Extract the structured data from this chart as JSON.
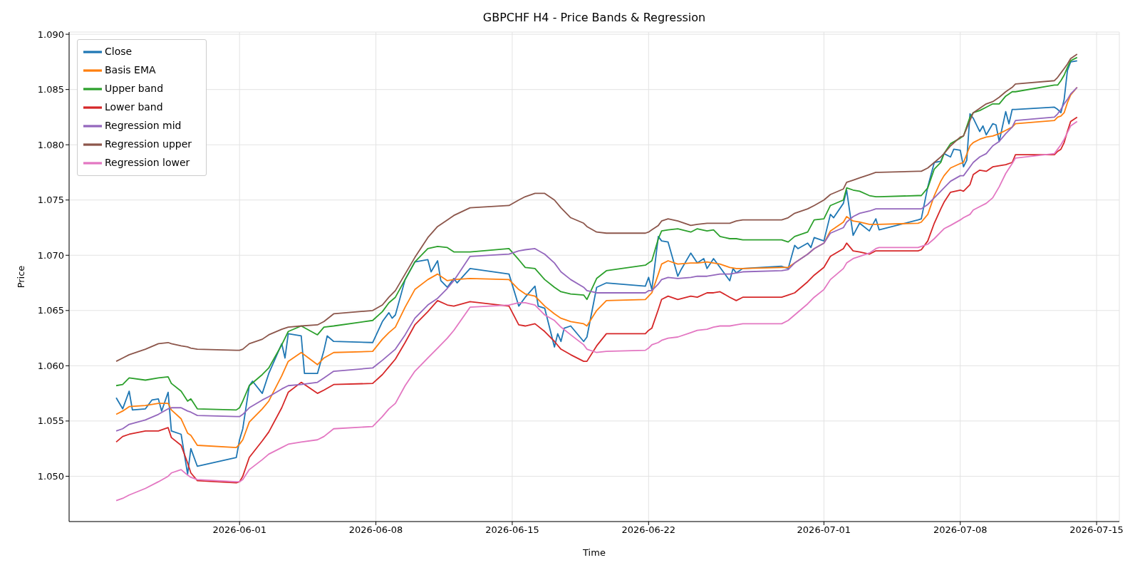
{
  "chart_data": {
    "type": "line",
    "title": "GBPCHF H4 - Price Bands & Regression",
    "xlabel": "Time",
    "ylabel": "Price",
    "xlim": [
      "2026-05-23T06:00",
      "2026-07-16T04:00"
    ],
    "xticks": [
      "2026-06-01",
      "2026-06-08",
      "2026-06-15",
      "2026-06-22",
      "2026-07-01",
      "2026-07-08",
      "2026-07-15"
    ],
    "ylim": [
      1.0459,
      1.0902
    ],
    "yticks": [
      {
        "value": 1.05,
        "label": "1.050"
      },
      {
        "value": 1.055,
        "label": "1.055"
      },
      {
        "value": 1.06,
        "label": "1.060"
      },
      {
        "value": 1.065,
        "label": "1.065"
      },
      {
        "value": 1.07,
        "label": "1.070"
      },
      {
        "value": 1.075,
        "label": "1.075"
      },
      {
        "value": 1.08,
        "label": "1.080"
      },
      {
        "value": 1.085,
        "label": "1.085"
      },
      {
        "value": 1.09,
        "label": "1.090"
      }
    ],
    "grid": true,
    "legend": "top left",
    "line_style": "solid",
    "x": [
      "2026-05-25T16:00",
      "2026-05-26T00:00",
      "2026-05-26T08:00",
      "2026-05-27T04:00",
      "2026-05-27T20:00",
      "2026-05-28T08:00",
      "2026-05-28T12:00",
      "2026-05-29T00:00",
      "2026-05-29T08:00",
      "2026-05-29T12:00",
      "2026-05-29T20:00",
      "2026-05-31T20:00",
      "2026-06-01T00:00",
      "2026-06-01T04:00",
      "2026-06-01T12:00",
      "2026-06-02T04:00",
      "2026-06-02T12:00",
      "2026-06-03T04:00",
      "2026-06-03T12:00",
      "2026-06-04T04:00",
      "2026-06-05T00:00",
      "2026-06-05T08:00",
      "2026-06-05T20:00",
      "2026-06-07T20:00",
      "2026-06-08T08:00",
      "2026-06-08T16:00",
      "2026-06-09T00:00",
      "2026-06-09T12:00",
      "2026-06-10T00:00",
      "2026-06-10T16:00",
      "2026-06-11T04:00",
      "2026-06-11T16:00",
      "2026-06-12T00:00",
      "2026-06-12T20:00",
      "2026-06-14T20:00",
      "2026-06-15T08:00",
      "2026-06-15T16:00",
      "2026-06-16T04:00",
      "2026-06-16T16:00",
      "2026-06-17T04:00",
      "2026-06-17T12:00",
      "2026-06-18T00:00",
      "2026-06-18T16:00",
      "2026-06-18T20:00",
      "2026-06-19T08:00",
      "2026-06-19T20:00",
      "2026-06-21T20:00",
      "2026-06-22T00:00",
      "2026-06-22T04:00",
      "2026-06-22T12:00",
      "2026-06-22T16:00",
      "2026-06-23T00:00",
      "2026-06-23T12:00",
      "2026-06-24T04:00",
      "2026-06-24T12:00",
      "2026-06-25T00:00",
      "2026-06-25T08:00",
      "2026-06-25T16:00",
      "2026-06-26T04:00",
      "2026-06-26T12:00",
      "2026-06-26T20:00",
      "2026-06-28T20:00",
      "2026-06-29T04:00",
      "2026-06-29T12:00",
      "2026-06-30T04:00",
      "2026-06-30T12:00",
      "2026-07-01T00:00",
      "2026-07-01T08:00",
      "2026-07-02T00:00",
      "2026-07-02T04:00",
      "2026-07-02T12:00",
      "2026-07-02T20:00",
      "2026-07-03T08:00",
      "2026-07-03T16:00",
      "2026-07-03T20:00",
      "2026-07-05T20:00",
      "2026-07-06T00:00",
      "2026-07-06T08:00",
      "2026-07-06T16:00",
      "2026-07-07T00:00",
      "2026-07-07T04:00",
      "2026-07-07T12:00",
      "2026-07-08T00:00",
      "2026-07-08T04:00",
      "2026-07-08T12:00",
      "2026-07-08T16:00",
      "2026-07-09T00:00",
      "2026-07-09T08:00",
      "2026-07-09T16:00",
      "2026-07-10T00:00",
      "2026-07-10T08:00",
      "2026-07-10T16:00",
      "2026-07-10T20:00",
      "2026-07-12T20:00",
      "2026-07-13T00:00",
      "2026-07-13T04:00",
      "2026-07-13T08:00",
      "2026-07-13T12:00",
      "2026-07-13T16:00",
      "2026-07-14T00:00"
    ],
    "series": [
      {
        "name": "Close",
        "color": "#1f77b4",
        "x": [
          "2026-05-25T16:00",
          "2026-05-26T00:00",
          "2026-05-26T08:00",
          "2026-05-26T12:00",
          "2026-05-27T04:00",
          "2026-05-27T12:00",
          "2026-05-27T20:00",
          "2026-05-28T00:00",
          "2026-05-28T08:00",
          "2026-05-28T12:00",
          "2026-05-29T00:00",
          "2026-05-29T08:00",
          "2026-05-29T12:00",
          "2026-05-29T20:00",
          "2026-05-31T20:00",
          "2026-06-01T00:00",
          "2026-06-01T04:00",
          "2026-06-01T12:00",
          "2026-06-01T16:00",
          "2026-06-02T04:00",
          "2026-06-02T12:00",
          "2026-06-03T04:00",
          "2026-06-03T08:00",
          "2026-06-03T12:00",
          "2026-06-04T04:00",
          "2026-06-04T08:00",
          "2026-06-05T00:00",
          "2026-06-05T08:00",
          "2026-06-05T12:00",
          "2026-06-05T20:00",
          "2026-06-07T20:00",
          "2026-06-08T08:00",
          "2026-06-08T16:00",
          "2026-06-08T20:00",
          "2026-06-09T00:00",
          "2026-06-09T12:00",
          "2026-06-10T00:00",
          "2026-06-10T16:00",
          "2026-06-10T20:00",
          "2026-06-11T04:00",
          "2026-06-11T08:00",
          "2026-06-11T16:00",
          "2026-06-12T00:00",
          "2026-06-12T04:00",
          "2026-06-12T20:00",
          "2026-06-14T20:00",
          "2026-06-15T08:00",
          "2026-06-15T16:00",
          "2026-06-16T04:00",
          "2026-06-16T08:00",
          "2026-06-16T16:00",
          "2026-06-17T04:00",
          "2026-06-17T08:00",
          "2026-06-17T12:00",
          "2026-06-17T16:00",
          "2026-06-18T00:00",
          "2026-06-18T16:00",
          "2026-06-18T20:00",
          "2026-06-19T08:00",
          "2026-06-19T20:00",
          "2026-06-21T20:00",
          "2026-06-22T00:00",
          "2026-06-22T04:00",
          "2026-06-22T12:00",
          "2026-06-22T16:00",
          "2026-06-23T00:00",
          "2026-06-23T12:00",
          "2026-06-23T16:00",
          "2026-06-24T04:00",
          "2026-06-24T12:00",
          "2026-06-24T20:00",
          "2026-06-25T00:00",
          "2026-06-25T08:00",
          "2026-06-25T16:00",
          "2026-06-26T04:00",
          "2026-06-26T08:00",
          "2026-06-26T12:00",
          "2026-06-26T20:00",
          "2026-06-28T20:00",
          "2026-06-29T04:00",
          "2026-06-29T12:00",
          "2026-06-29T16:00",
          "2026-06-30T04:00",
          "2026-06-30T08:00",
          "2026-06-30T12:00",
          "2026-07-01T00:00",
          "2026-07-01T08:00",
          "2026-07-01T12:00",
          "2026-07-02T00:00",
          "2026-07-02T04:00",
          "2026-07-02T12:00",
          "2026-07-02T20:00",
          "2026-07-03T08:00",
          "2026-07-03T16:00",
          "2026-07-03T20:00",
          "2026-07-05T20:00",
          "2026-07-06T00:00",
          "2026-07-06T08:00",
          "2026-07-06T16:00",
          "2026-07-07T00:00",
          "2026-07-07T04:00",
          "2026-07-07T12:00",
          "2026-07-07T16:00",
          "2026-07-08T00:00",
          "2026-07-08T04:00",
          "2026-07-08T08:00",
          "2026-07-08T12:00",
          "2026-07-08T16:00",
          "2026-07-09T00:00",
          "2026-07-09T04:00",
          "2026-07-09T08:00",
          "2026-07-09T16:00",
          "2026-07-09T20:00",
          "2026-07-10T00:00",
          "2026-07-10T08:00",
          "2026-07-10T12:00",
          "2026-07-10T16:00",
          "2026-07-10T20:00",
          "2026-07-12T20:00",
          "2026-07-13T00:00",
          "2026-07-13T04:00",
          "2026-07-13T08:00",
          "2026-07-13T12:00",
          "2026-07-13T16:00",
          "2026-07-14T00:00"
        ],
        "values": [
          1.0571,
          1.0561,
          1.0577,
          1.056,
          1.0561,
          1.0569,
          1.057,
          1.0559,
          1.0576,
          1.0541,
          1.0538,
          1.0502,
          1.0525,
          1.0509,
          1.0517,
          1.0533,
          1.0543,
          1.0582,
          1.0586,
          1.0575,
          1.0593,
          1.062,
          1.0607,
          1.0629,
          1.0627,
          1.0593,
          1.0593,
          1.0614,
          1.0627,
          1.0622,
          1.0621,
          1.064,
          1.0648,
          1.0643,
          1.0646,
          1.0678,
          1.0694,
          1.0696,
          1.0685,
          1.0695,
          1.0677,
          1.0671,
          1.0679,
          1.0675,
          1.0688,
          1.0683,
          1.0654,
          1.0662,
          1.0672,
          1.0654,
          1.0652,
          1.0617,
          1.0629,
          1.0622,
          1.0634,
          1.0636,
          1.0622,
          1.0626,
          1.0671,
          1.0675,
          1.0672,
          1.068,
          1.0669,
          1.0717,
          1.0713,
          1.0712,
          1.0681,
          1.0687,
          1.0702,
          1.0693,
          1.0697,
          1.0688,
          1.0697,
          1.0689,
          1.0677,
          1.0688,
          1.0684,
          1.0688,
          1.069,
          1.0688,
          1.0709,
          1.0706,
          1.0711,
          1.0707,
          1.0716,
          1.0713,
          1.0737,
          1.0734,
          1.0747,
          1.0759,
          1.0718,
          1.0729,
          1.0722,
          1.0733,
          1.0723,
          1.0732,
          1.0733,
          1.0762,
          1.0784,
          1.0785,
          1.0792,
          1.0789,
          1.0796,
          1.0795,
          1.078,
          1.0786,
          1.0828,
          1.0824,
          1.0812,
          1.0817,
          1.0809,
          1.0819,
          1.0818,
          1.0803,
          1.083,
          1.0819,
          1.0832,
          1.0832,
          1.0834,
          1.0832,
          1.0829,
          1.0841,
          1.0867,
          1.0875,
          1.0876
        ]
      },
      {
        "name": "Basis EMA",
        "color": "#ff7f0e",
        "values": [
          1.0556,
          1.0559,
          1.0563,
          1.0564,
          1.0566,
          1.0566,
          1.056,
          1.0552,
          1.0539,
          1.0537,
          1.0528,
          1.0526,
          1.0529,
          1.0533,
          1.0549,
          1.0561,
          1.0568,
          1.0591,
          1.0604,
          1.0612,
          1.0601,
          1.0607,
          1.0612,
          1.0613,
          1.0624,
          1.063,
          1.0635,
          1.0653,
          1.0669,
          1.0678,
          1.0683,
          1.0677,
          1.0678,
          1.0679,
          1.0678,
          1.0669,
          1.0665,
          1.0663,
          1.0654,
          1.0647,
          1.0643,
          1.064,
          1.0638,
          1.0636,
          1.065,
          1.0659,
          1.066,
          1.0663,
          1.0666,
          1.0683,
          1.0692,
          1.0695,
          1.0692,
          1.0693,
          1.0693,
          1.0694,
          1.0693,
          1.0692,
          1.0689,
          1.0688,
          1.0688,
          1.0689,
          1.0689,
          1.0693,
          1.0701,
          1.0706,
          1.0711,
          1.0722,
          1.073,
          1.0735,
          1.0731,
          1.073,
          1.0728,
          1.0728,
          1.0728,
          1.0729,
          1.073,
          1.0737,
          1.0754,
          1.0767,
          1.0772,
          1.0779,
          1.0783,
          1.0784,
          1.0799,
          1.0802,
          1.0805,
          1.0807,
          1.0808,
          1.081,
          1.0813,
          1.0816,
          1.0819,
          1.0822,
          1.0825,
          1.0826,
          1.0829,
          1.0838,
          1.0845,
          1.0852
        ]
      },
      {
        "name": "Upper band",
        "color": "#2ca02c",
        "values": [
          1.0582,
          1.0583,
          1.0589,
          1.0587,
          1.0589,
          1.059,
          1.0584,
          1.0577,
          1.0568,
          1.057,
          1.0561,
          1.056,
          1.0562,
          1.0568,
          1.0582,
          1.0592,
          1.0598,
          1.0619,
          1.0631,
          1.0636,
          1.0628,
          1.0635,
          1.0636,
          1.0641,
          1.0649,
          1.0657,
          1.0662,
          1.0678,
          1.0694,
          1.0706,
          1.0708,
          1.0707,
          1.0703,
          1.0703,
          1.0706,
          1.0696,
          1.0689,
          1.0688,
          1.0678,
          1.0671,
          1.0667,
          1.0665,
          1.0664,
          1.066,
          1.0679,
          1.0686,
          1.0691,
          1.0693,
          1.0695,
          1.0715,
          1.0722,
          1.0723,
          1.0724,
          1.0721,
          1.0724,
          1.0722,
          1.0723,
          1.0717,
          1.0715,
          1.0715,
          1.0714,
          1.0714,
          1.0712,
          1.0717,
          1.0721,
          1.0732,
          1.0733,
          1.0745,
          1.075,
          1.0761,
          1.0759,
          1.0758,
          1.0754,
          1.0753,
          1.0753,
          1.0754,
          1.0754,
          1.0761,
          1.0778,
          1.0784,
          1.0792,
          1.0801,
          1.0806,
          1.0808,
          1.0825,
          1.0829,
          1.0831,
          1.0834,
          1.0837,
          1.0837,
          1.0844,
          1.0848,
          1.0848,
          1.0854,
          1.0854,
          1.0858,
          1.0863,
          1.087,
          1.0876,
          1.0879
        ]
      },
      {
        "name": "Lower band",
        "color": "#d62728",
        "values": [
          1.0531,
          1.0536,
          1.0538,
          1.0541,
          1.0541,
          1.0544,
          1.0535,
          1.0528,
          1.0512,
          1.0503,
          1.0496,
          1.0494,
          1.0495,
          1.05,
          1.0517,
          1.0532,
          1.054,
          1.0562,
          1.0576,
          1.0585,
          1.0575,
          1.0578,
          1.0583,
          1.0584,
          1.0592,
          1.0599,
          1.0606,
          1.0621,
          1.0637,
          1.0649,
          1.0659,
          1.0655,
          1.0654,
          1.0658,
          1.0654,
          1.0637,
          1.0636,
          1.0638,
          1.0631,
          1.0622,
          1.0615,
          1.061,
          1.0604,
          1.0604,
          1.0618,
          1.0629,
          1.0629,
          1.0632,
          1.0634,
          1.0651,
          1.066,
          1.0663,
          1.066,
          1.0663,
          1.0662,
          1.0666,
          1.0666,
          1.0667,
          1.0662,
          1.0659,
          1.0662,
          1.0662,
          1.0664,
          1.0666,
          1.0676,
          1.0682,
          1.0689,
          1.0699,
          1.0706,
          1.0711,
          1.0704,
          1.0703,
          1.0701,
          1.0704,
          1.0704,
          1.0704,
          1.0705,
          1.0713,
          1.0729,
          1.0742,
          1.0748,
          1.0757,
          1.0759,
          1.0758,
          1.0764,
          1.0773,
          1.0777,
          1.0776,
          1.078,
          1.0781,
          1.0782,
          1.0784,
          1.0791,
          1.0791,
          1.0794,
          1.0796,
          1.0802,
          1.0812,
          1.0821,
          1.0825
        ]
      },
      {
        "name": "Regression mid",
        "color": "#9467bd",
        "values": [
          1.0541,
          1.0543,
          1.0547,
          1.0551,
          1.0556,
          1.0561,
          1.0562,
          1.0562,
          1.0559,
          1.0558,
          1.0555,
          1.0554,
          1.0554,
          1.0556,
          1.0562,
          1.0569,
          1.0572,
          1.0579,
          1.0582,
          1.0583,
          1.0585,
          1.0589,
          1.0595,
          1.0598,
          1.0605,
          1.061,
          1.0615,
          1.0628,
          1.0643,
          1.0655,
          1.0661,
          1.067,
          1.0677,
          1.0699,
          1.0701,
          1.0704,
          1.0705,
          1.0706,
          1.0701,
          1.0693,
          1.0685,
          1.0678,
          1.0671,
          1.0668,
          1.0666,
          1.0666,
          1.0666,
          1.0668,
          1.0668,
          1.0674,
          1.0678,
          1.068,
          1.0679,
          1.068,
          1.0681,
          1.0681,
          1.0682,
          1.0683,
          1.0683,
          1.0684,
          1.0685,
          1.0686,
          1.0687,
          1.0693,
          1.0701,
          1.0706,
          1.0711,
          1.072,
          1.0725,
          1.073,
          1.0735,
          1.0738,
          1.074,
          1.0742,
          1.0742,
          1.0742,
          1.0742,
          1.0746,
          1.0752,
          1.0758,
          1.0761,
          1.0767,
          1.0772,
          1.0772,
          1.078,
          1.0784,
          1.0789,
          1.0792,
          1.0799,
          1.0803,
          1.081,
          1.0816,
          1.0822,
          1.0825,
          1.0828,
          1.0832,
          1.0837,
          1.0841,
          1.0846,
          1.0852
        ]
      },
      {
        "name": "Regression upper",
        "color": "#8c564b",
        "values": [
          1.0604,
          1.0607,
          1.061,
          1.0615,
          1.062,
          1.0621,
          1.062,
          1.0618,
          1.0617,
          1.0616,
          1.0615,
          1.0614,
          1.0614,
          1.0615,
          1.062,
          1.0624,
          1.0628,
          1.0633,
          1.0635,
          1.0636,
          1.0637,
          1.064,
          1.0647,
          1.065,
          1.0655,
          1.0662,
          1.0668,
          1.0683,
          1.0698,
          1.0716,
          1.0726,
          1.0732,
          1.0736,
          1.0743,
          1.0745,
          1.075,
          1.0753,
          1.0756,
          1.0756,
          1.075,
          1.0743,
          1.0734,
          1.0729,
          1.0726,
          1.0721,
          1.072,
          1.072,
          1.0721,
          1.0723,
          1.0727,
          1.0731,
          1.0733,
          1.0731,
          1.0727,
          1.0728,
          1.0729,
          1.0729,
          1.0729,
          1.0729,
          1.0731,
          1.0732,
          1.0732,
          1.0734,
          1.0738,
          1.0742,
          1.0745,
          1.075,
          1.0755,
          1.076,
          1.0766,
          1.0768,
          1.077,
          1.0773,
          1.0775,
          1.0775,
          1.0776,
          1.0776,
          1.0779,
          1.0784,
          1.0789,
          1.0792,
          1.0799,
          1.0807,
          1.0808,
          1.0822,
          1.0829,
          1.0833,
          1.0837,
          1.0839,
          1.0843,
          1.0848,
          1.0852,
          1.0855,
          1.0858,
          1.0861,
          1.0865,
          1.0869,
          1.0873,
          1.0878,
          1.0882
        ]
      },
      {
        "name": "Regression lower",
        "color": "#e377c2",
        "values": [
          1.0478,
          1.048,
          1.0483,
          1.0489,
          1.0495,
          1.05,
          1.0503,
          1.0506,
          1.0501,
          1.0499,
          1.0497,
          1.0495,
          1.0495,
          1.0497,
          1.0506,
          1.0515,
          1.052,
          1.0526,
          1.0529,
          1.0531,
          1.0533,
          1.0536,
          1.0543,
          1.0545,
          1.0554,
          1.0561,
          1.0566,
          1.0582,
          1.0595,
          1.0607,
          1.0616,
          1.0625,
          1.0632,
          1.0653,
          1.0655,
          1.0657,
          1.0657,
          1.0655,
          1.0646,
          1.0641,
          1.0635,
          1.0628,
          1.0619,
          1.0615,
          1.0612,
          1.0613,
          1.0614,
          1.0616,
          1.0619,
          1.0621,
          1.0623,
          1.0625,
          1.0626,
          1.063,
          1.0632,
          1.0633,
          1.0635,
          1.0636,
          1.0636,
          1.0637,
          1.0638,
          1.0638,
          1.0641,
          1.0646,
          1.0656,
          1.0662,
          1.0669,
          1.0678,
          1.0688,
          1.0693,
          1.0697,
          1.0699,
          1.0702,
          1.0706,
          1.0707,
          1.0707,
          1.0708,
          1.071,
          1.0715,
          1.0721,
          1.0724,
          1.0727,
          1.0732,
          1.0734,
          1.0737,
          1.0741,
          1.0744,
          1.0747,
          1.0752,
          1.0762,
          1.0774,
          1.0783,
          1.0788,
          1.0792,
          1.0796,
          1.08,
          1.0805,
          1.0811,
          1.0817,
          1.0821
        ]
      }
    ]
  }
}
